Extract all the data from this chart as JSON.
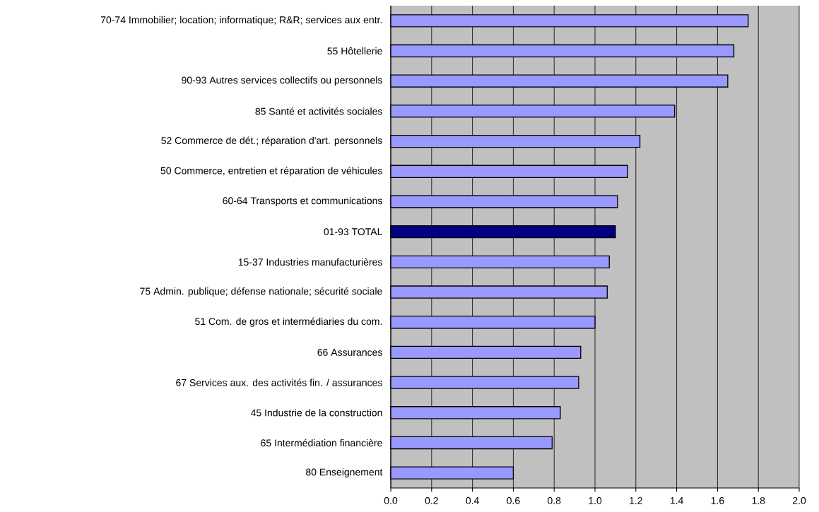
{
  "chart_data": {
    "type": "bar",
    "orientation": "horizontal",
    "categories": [
      "70-74 Immobilier; location; informatique; R&R; services aux entr.",
      "55 Hôtellerie",
      "90-93 Autres services collectifs ou personnels",
      "85 Santé et activités sociales",
      "52 Commerce de dét.; réparation d'art. personnels",
      "50 Commerce, entretien et réparation de véhicules",
      "60-64 Transports et communications",
      "01-93 TOTAL",
      "15-37 Industries manufacturières",
      "75 Admin. publique; défense nationale; sécurité sociale",
      "51 Com. de gros et intermédiaries du com.",
      "66 Assurances",
      "67 Services aux. des activités fin. / assurances",
      "45 Industrie de la construction",
      "65 Intermédiation financière",
      "80 Enseignement"
    ],
    "values": [
      1.75,
      1.68,
      1.65,
      1.39,
      1.22,
      1.16,
      1.11,
      1.1,
      1.07,
      1.06,
      1.0,
      0.93,
      0.92,
      0.83,
      0.79,
      0.6
    ],
    "colors": [
      "#9999ff",
      "#9999ff",
      "#9999ff",
      "#9999ff",
      "#9999ff",
      "#9999ff",
      "#9999ff",
      "#000080",
      "#9999ff",
      "#9999ff",
      "#9999ff",
      "#9999ff",
      "#9999ff",
      "#9999ff",
      "#9999ff",
      "#9999ff"
    ],
    "xlim": [
      0,
      2
    ],
    "xticks": [
      {
        "value": 0,
        "label": "0.0"
      },
      {
        "value": 0.2,
        "label": "0.2"
      },
      {
        "value": 0.4,
        "label": "0.4"
      },
      {
        "value": 0.6,
        "label": "0.6"
      },
      {
        "value": 0.8,
        "label": "0.8"
      },
      {
        "value": 1.0,
        "label": "1.0"
      },
      {
        "value": 1.2,
        "label": "1.2"
      },
      {
        "value": 1.4,
        "label": "1.4"
      },
      {
        "value": 1.6,
        "label": "1.6"
      },
      {
        "value": 1.8,
        "label": "1.8"
      },
      {
        "value": 2.0,
        "label": "2.0"
      }
    ],
    "grid": "x"
  }
}
